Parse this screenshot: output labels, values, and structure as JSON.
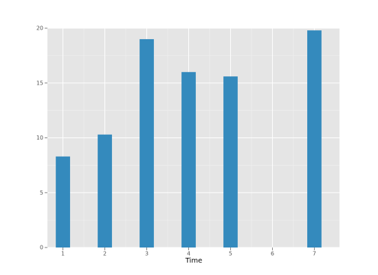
{
  "chart_data": {
    "type": "bar",
    "x_label": "Time",
    "x": [
      1,
      2,
      3,
      4,
      5,
      7
    ],
    "values": [
      8.3,
      10.3,
      19.0,
      16.0,
      15.6,
      19.8
    ],
    "color": "#348ABD",
    "background": "#E5E5E5",
    "grid": true,
    "xlim": [
      0.63,
      7.6
    ],
    "xticks": [
      1,
      2,
      3,
      4,
      5,
      6,
      7
    ],
    "ylim": [
      0,
      20
    ],
    "yticks": [
      0,
      5,
      10,
      15,
      20
    ]
  }
}
